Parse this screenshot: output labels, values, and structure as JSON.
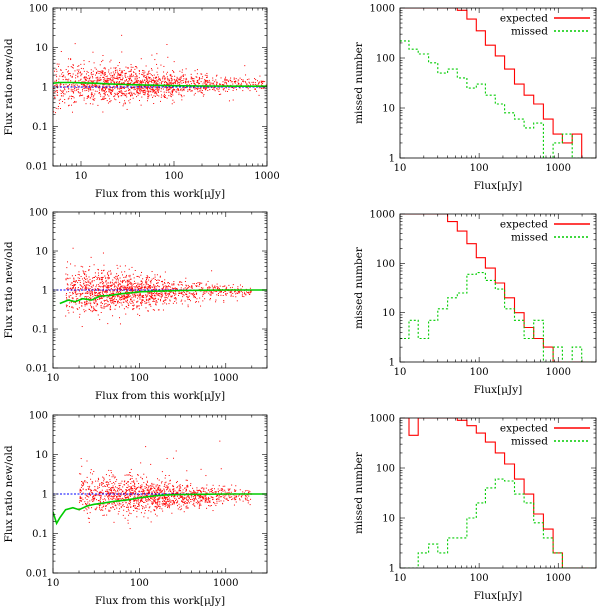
{
  "chart_data": [
    {
      "type": "scatter",
      "panel": "left-top",
      "title": "",
      "xlabel": "Flux from this work[μJy]",
      "ylabel": "Flux ratio new/old",
      "xscale": "log",
      "yscale": "log",
      "xlim": [
        5,
        1000
      ],
      "ylim": [
        0.01,
        100
      ],
      "xticks": [
        {
          "v": 10,
          "label": "10"
        },
        {
          "v": 100,
          "label": "100"
        },
        {
          "v": 1000,
          "label": "1000"
        }
      ],
      "yticks": [
        {
          "v": 0.01,
          "label": "0.01"
        },
        {
          "v": 0.1,
          "label": "0.1"
        },
        {
          "v": 1,
          "label": "1"
        },
        {
          "v": 10,
          "label": "10"
        },
        {
          "v": 100,
          "label": "100"
        }
      ],
      "scatter": {
        "name": "sources",
        "color": "#ff0000",
        "n": 1600,
        "xmin": 5,
        "xmax": 1000,
        "center": 1.15,
        "spread_low": 0.28,
        "spread_high": 0.08,
        "pivot": 30
      },
      "reference_line": {
        "y": 1,
        "color": "#0000ff"
      },
      "series": [
        {
          "name": "running median",
          "color": "#00cc00",
          "x": [
            5,
            6,
            8,
            10,
            15,
            20,
            30,
            50,
            100,
            200,
            500,
            1000
          ],
          "y": [
            1.25,
            1.3,
            1.3,
            1.28,
            1.24,
            1.2,
            1.16,
            1.12,
            1.08,
            1.06,
            1.05,
            1.05
          ]
        }
      ]
    },
    {
      "type": "line",
      "panel": "right-top",
      "title": "",
      "xlabel": "Flux[μJy]",
      "ylabel": "missed number",
      "xscale": "log",
      "yscale": "log",
      "xlim": [
        10,
        3000
      ],
      "ylim": [
        1,
        1000
      ],
      "xticks": [
        {
          "v": 10,
          "label": "10"
        },
        {
          "v": 100,
          "label": "100"
        },
        {
          "v": 1000,
          "label": "1000"
        }
      ],
      "yticks": [
        {
          "v": 1,
          "label": "1"
        },
        {
          "v": 10,
          "label": "10"
        },
        {
          "v": 100,
          "label": "100"
        },
        {
          "v": 1000,
          "label": "1000"
        }
      ],
      "legend": {
        "position": "top-right",
        "entries": [
          "expected",
          "missed"
        ]
      },
      "step_series": [
        {
          "name": "expected",
          "color": "#ff0000",
          "dash": "",
          "edges": [
            10,
            13,
            17,
            23,
            30,
            40,
            53,
            70,
            92,
            120,
            160,
            210,
            280,
            370,
            490,
            650,
            860,
            1130,
            1500,
            1980,
            2620,
            3000
          ],
          "values": [
            1000,
            1000,
            1000,
            1000,
            1000,
            1000,
            900,
            600,
            350,
            180,
            110,
            60,
            30,
            18,
            12,
            6,
            3,
            2,
            3,
            1,
            1
          ]
        },
        {
          "name": "missed",
          "color": "#00cc00",
          "dash": "2,2",
          "edges": [
            10,
            13,
            17,
            23,
            30,
            40,
            53,
            70,
            92,
            120,
            160,
            210,
            280,
            370,
            490,
            650,
            860,
            1130,
            1500,
            1980,
            2620,
            3000
          ],
          "values": [
            220,
            150,
            120,
            80,
            50,
            60,
            40,
            25,
            30,
            18,
            12,
            8,
            6,
            4,
            5,
            1,
            2,
            3,
            1,
            1,
            1
          ]
        }
      ]
    },
    {
      "type": "scatter",
      "panel": "left-middle",
      "title": "",
      "xlabel": "Flux from this work[μJy]",
      "ylabel": "Flux ratio new/old",
      "xscale": "log",
      "yscale": "log",
      "xlim": [
        10,
        3000
      ],
      "ylim": [
        0.01,
        100
      ],
      "xticks": [
        {
          "v": 10,
          "label": "10"
        },
        {
          "v": 100,
          "label": "100"
        },
        {
          "v": 1000,
          "label": "1000"
        }
      ],
      "yticks": [
        {
          "v": 0.01,
          "label": "0.01"
        },
        {
          "v": 0.1,
          "label": "0.1"
        },
        {
          "v": 1,
          "label": "1"
        },
        {
          "v": 10,
          "label": "10"
        },
        {
          "v": 100,
          "label": "100"
        }
      ],
      "scatter": {
        "name": "sources",
        "color": "#ff0000",
        "n": 1500,
        "xmin": 14,
        "xmax": 2000,
        "center": 0.9,
        "spread_low": 0.32,
        "spread_high": 0.06,
        "pivot": 60
      },
      "reference_line": {
        "y": 1,
        "color": "#0000ff"
      },
      "series": [
        {
          "name": "running median",
          "color": "#00cc00",
          "x": [
            12,
            15,
            18,
            22,
            28,
            35,
            45,
            60,
            80,
            100,
            150,
            200,
            300,
            500,
            1000,
            2000,
            3000
          ],
          "y": [
            0.45,
            0.55,
            0.5,
            0.6,
            0.55,
            0.7,
            0.72,
            0.8,
            0.85,
            0.9,
            0.93,
            0.95,
            0.97,
            0.98,
            1.0,
            1.0,
            1.0
          ]
        }
      ]
    },
    {
      "type": "line",
      "panel": "right-middle",
      "title": "",
      "xlabel": "Flux[μJy]",
      "ylabel": "missed number",
      "xscale": "log",
      "yscale": "log",
      "xlim": [
        10,
        3000
      ],
      "ylim": [
        1,
        1000
      ],
      "xticks": [
        {
          "v": 10,
          "label": "10"
        },
        {
          "v": 100,
          "label": "100"
        },
        {
          "v": 1000,
          "label": "1000"
        }
      ],
      "yticks": [
        {
          "v": 1,
          "label": "1"
        },
        {
          "v": 10,
          "label": "10"
        },
        {
          "v": 100,
          "label": "100"
        },
        {
          "v": 1000,
          "label": "1000"
        }
      ],
      "legend": {
        "position": "top-right",
        "entries": [
          "expected",
          "missed"
        ]
      },
      "step_series": [
        {
          "name": "expected",
          "color": "#ff0000",
          "dash": "",
          "edges": [
            10,
            13,
            17,
            23,
            30,
            40,
            53,
            70,
            92,
            120,
            160,
            210,
            280,
            370,
            490,
            650,
            860,
            1130,
            1500,
            1980,
            2620,
            3000
          ],
          "values": [
            1000,
            1000,
            1000,
            1000,
            1000,
            700,
            450,
            250,
            130,
            80,
            40,
            20,
            10,
            5,
            3,
            2,
            1,
            1,
            1,
            1,
            1
          ]
        },
        {
          "name": "missed",
          "color": "#00cc00",
          "dash": "2,2",
          "edges": [
            10,
            13,
            17,
            23,
            30,
            40,
            53,
            70,
            92,
            120,
            160,
            210,
            280,
            370,
            490,
            650,
            860,
            1130,
            1500,
            1980,
            2620,
            3000
          ],
          "values": [
            3,
            7,
            3,
            7,
            12,
            20,
            25,
            60,
            65,
            45,
            30,
            12,
            7,
            3,
            7,
            1,
            2,
            1,
            2,
            1,
            1
          ]
        }
      ]
    },
    {
      "type": "scatter",
      "panel": "left-bottom",
      "title": "",
      "xlabel": "Flux from this work[μJy]",
      "ylabel": "Flux ratio new/old",
      "xscale": "log",
      "yscale": "log",
      "xlim": [
        10,
        3000
      ],
      "ylim": [
        0.01,
        100
      ],
      "xticks": [
        {
          "v": 10,
          "label": "10"
        },
        {
          "v": 100,
          "label": "100"
        },
        {
          "v": 1000,
          "label": "1000"
        }
      ],
      "yticks": [
        {
          "v": 0.01,
          "label": "0.01"
        },
        {
          "v": 0.1,
          "label": "0.1"
        },
        {
          "v": 1,
          "label": "1"
        },
        {
          "v": 10,
          "label": "10"
        },
        {
          "v": 100,
          "label": "100"
        }
      ],
      "scatter": {
        "name": "sources",
        "color": "#ff0000",
        "n": 1400,
        "xmin": 20,
        "xmax": 2000,
        "center": 0.9,
        "spread_low": 0.3,
        "spread_high": 0.07,
        "pivot": 110
      },
      "reference_line": {
        "y": 1,
        "color": "#0000ff"
      },
      "series": [
        {
          "name": "running median",
          "color": "#00cc00",
          "x": [
            10,
            11,
            12,
            14,
            17,
            20,
            25,
            30,
            40,
            50,
            70,
            100,
            150,
            200,
            300,
            500,
            1000,
            2000,
            3000
          ],
          "y": [
            0.35,
            0.18,
            0.25,
            0.4,
            0.45,
            0.4,
            0.5,
            0.55,
            0.6,
            0.65,
            0.7,
            0.8,
            0.9,
            0.95,
            0.97,
            0.98,
            1.0,
            1.0,
            1.0
          ]
        }
      ]
    },
    {
      "type": "line",
      "panel": "right-bottom",
      "title": "",
      "xlabel": "Flux[μJy]",
      "ylabel": "missed number",
      "xscale": "log",
      "yscale": "log",
      "xlim": [
        10,
        3000
      ],
      "ylim": [
        1,
        1000
      ],
      "xticks": [
        {
          "v": 10,
          "label": "10"
        },
        {
          "v": 100,
          "label": "100"
        },
        {
          "v": 1000,
          "label": "1000"
        }
      ],
      "yticks": [
        {
          "v": 1,
          "label": "1"
        },
        {
          "v": 10,
          "label": "10"
        },
        {
          "v": 100,
          "label": "100"
        },
        {
          "v": 1000,
          "label": "1000"
        }
      ],
      "legend": {
        "position": "top-right",
        "entries": [
          "expected",
          "missed"
        ]
      },
      "step_series": [
        {
          "name": "expected",
          "color": "#ff0000",
          "dash": "",
          "edges": [
            10,
            13,
            17,
            23,
            30,
            40,
            53,
            70,
            92,
            120,
            160,
            210,
            280,
            370,
            490,
            650,
            860,
            1130,
            1500,
            1980,
            2620,
            3000
          ],
          "values": [
            1000,
            450,
            1000,
            1000,
            1000,
            1000,
            900,
            700,
            500,
            330,
            200,
            120,
            60,
            30,
            12,
            6,
            2,
            1,
            1,
            1,
            1
          ]
        },
        {
          "name": "missed",
          "color": "#00cc00",
          "dash": "2,2",
          "edges": [
            10,
            13,
            17,
            23,
            30,
            40,
            53,
            70,
            92,
            120,
            160,
            210,
            280,
            370,
            490,
            650,
            860,
            1130,
            1500,
            1980,
            2620,
            3000
          ],
          "values": [
            1,
            1,
            2,
            3,
            2,
            4,
            4,
            10,
            20,
            40,
            60,
            55,
            30,
            20,
            8,
            4,
            2,
            1,
            1,
            1,
            1
          ]
        }
      ]
    }
  ]
}
